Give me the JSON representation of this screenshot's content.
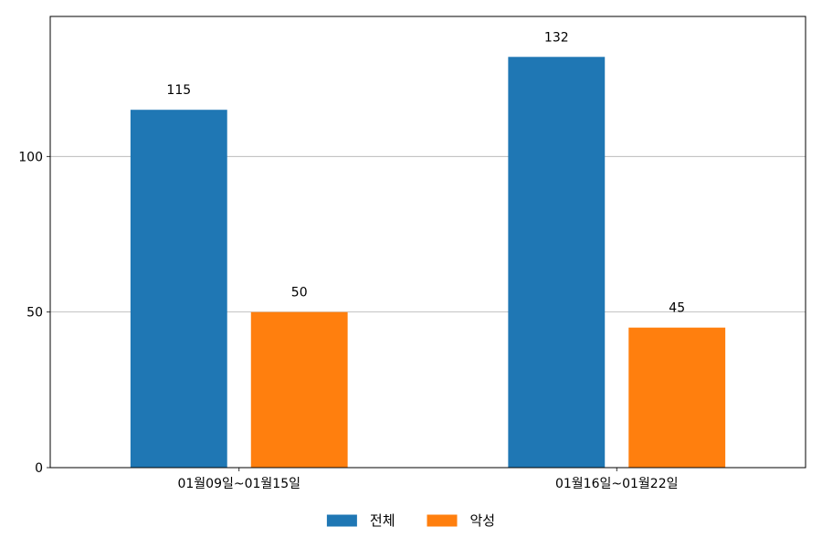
{
  "chart_data": {
    "type": "bar",
    "categories": [
      "01월09일~01월15일",
      "01월16일~01월22일"
    ],
    "series": [
      {
        "name": "전체",
        "values": [
          115,
          132
        ],
        "color": "#1f77b4"
      },
      {
        "name": "악성",
        "values": [
          50,
          45
        ],
        "color": "#ff7f0e"
      }
    ],
    "ylim": [
      0,
      145
    ],
    "yticks": [
      0,
      50,
      100
    ],
    "grid": "horizontal",
    "legend": "bottom-center",
    "data_labels": true
  }
}
